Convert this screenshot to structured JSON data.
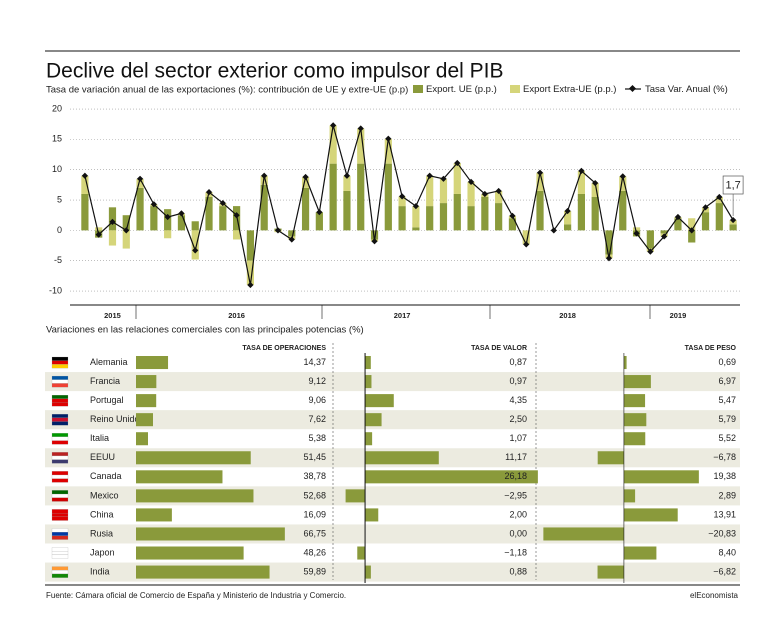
{
  "chart_data": [
    {
      "type": "bar-line",
      "title": "Declive del sector exterior como impulsor del PIB",
      "subtitle": "Tasa de variación anual de las exportaciones (%): contribución de UE y extre-UE (p.p)",
      "categories": [
        null,
        null,
        "2015",
        null,
        null,
        null,
        null,
        null,
        null,
        null,
        null,
        "2016",
        null,
        null,
        null,
        null,
        null,
        null,
        null,
        null,
        null,
        null,
        null,
        "2017",
        null,
        null,
        null,
        null,
        null,
        null,
        null,
        null,
        null,
        null,
        null,
        "2018",
        null,
        null,
        null,
        null,
        null,
        null,
        null,
        "2019",
        null,
        null,
        null,
        null
      ],
      "series": [
        {
          "name": "Export. UE (p.p.)",
          "type": "bar",
          "color": "#8a9a3b",
          "values": [
            6,
            -1.2,
            3.8,
            2.5,
            7,
            4,
            3.5,
            2.5,
            1.5,
            5.5,
            4,
            4,
            -5,
            7.5,
            0.3,
            -1,
            7,
            3,
            11,
            6.5,
            11,
            -1.5,
            11,
            4,
            0.5,
            4,
            4.5,
            6,
            4,
            5.5,
            4.5,
            2,
            0,
            6.5,
            0,
            1,
            6,
            5.5,
            -4,
            6.5,
            -1,
            -3,
            -0.5,
            2,
            -2,
            3,
            4.5,
            1
          ]
        },
        {
          "name": "Export Extra-UE (p.p.)",
          "type": "bar",
          "color": "#d5d57a",
          "values": [
            3,
            0.5,
            -2.5,
            -3,
            1.5,
            0.3,
            -1.3,
            0.3,
            -4.8,
            0.8,
            0.5,
            -1.5,
            -4,
            1.5,
            -0.3,
            -0.5,
            1.8,
            0,
            6.3,
            2.5,
            5.8,
            -0.3,
            4.1,
            1.6,
            3.5,
            5,
            4,
            5.1,
            4,
            0.5,
            2,
            0.4,
            -2.3,
            3,
            0,
            2.2,
            3.8,
            2.3,
            -0.6,
            2.4,
            0.5,
            -0.5,
            -0.5,
            0.2,
            2,
            0.8,
            1,
            0.7
          ]
        },
        {
          "name": "Tasa Var. Anual (%)",
          "type": "line",
          "color": "#111111",
          "values": [
            9,
            -0.7,
            1.4,
            0,
            8.5,
            4.3,
            2.2,
            2.8,
            -3.3,
            6.3,
            4.5,
            2.5,
            -9,
            9,
            0,
            -1.5,
            8.8,
            3,
            17.3,
            9,
            16.8,
            -1.8,
            15.1,
            5.6,
            4,
            9,
            8.5,
            11.1,
            8,
            6,
            6.5,
            2.4,
            -2.3,
            9.5,
            0,
            3.2,
            9.8,
            7.8,
            -4.6,
            8.9,
            -0.5,
            -3.5,
            -1,
            2.2,
            0,
            3.8,
            5.5,
            1.7
          ]
        }
      ],
      "annotation": "1,7",
      "ylim": [
        -12.3,
        20.5
      ],
      "yticks": [
        -10,
        -5,
        0,
        5,
        10,
        15,
        20
      ],
      "grid": true
    },
    {
      "type": "table",
      "title": "Variaciones en las relaciones comerciales con las principales potencias (%)",
      "countries": [
        "Alemania",
        "Francia",
        "Portugal",
        "Reino Unido",
        "Italia",
        "EEUU",
        "Canada",
        "Mexico",
        "China",
        "Rusia",
        "Japon",
        "India"
      ],
      "columns": [
        {
          "name": "TASA DE OPERACIONES",
          "color": "#8a9a3b",
          "xlim": [
            0,
            87
          ],
          "values": [
            14.37,
            9.12,
            9.06,
            7.62,
            5.38,
            51.45,
            38.78,
            52.68,
            16.09,
            66.75,
            48.26,
            59.89
          ],
          "value_labels": [
            "14,37",
            "9,12",
            "9,06",
            "7,62",
            "5,38",
            "51,45",
            "38,78",
            "52,68",
            "16,09",
            "66,75",
            "48,26",
            "59,89"
          ]
        },
        {
          "name": "TASA DE VALOR",
          "color": "#8a9a3b",
          "xlim": [
            -4.1,
            26.2
          ],
          "values": [
            0.87,
            0.97,
            4.35,
            2.5,
            1.07,
            11.17,
            26.18,
            -2.95,
            2,
            0,
            -1.18,
            0.88
          ],
          "value_labels": [
            "0,87",
            "0,97",
            "4,35",
            "2,50",
            "1,07",
            "11,17",
            "26,18",
            "−2,95",
            "2,00",
            "0,00",
            "−1,18",
            "0,88"
          ]
        },
        {
          "name": "TASA DE PESO",
          "color": "#8a9a3b",
          "xlim": [
            -21.7,
            29.5
          ],
          "values": [
            0.69,
            6.97,
            5.47,
            5.79,
            5.52,
            -6.78,
            19.38,
            2.89,
            13.91,
            -20.83,
            8.4,
            -6.82
          ],
          "value_labels": [
            "0,69",
            "6,97",
            "5,47",
            "5,79",
            "5,52",
            "−6,78",
            "19,38",
            "2,89",
            "13,91",
            "−20,83",
            "8,40",
            "−6,82"
          ]
        }
      ]
    }
  ],
  "source": "Fuente: Cámara oficial de Comercio de España y Ministerio de Industria y Comercio.",
  "brand": "elEconomista"
}
